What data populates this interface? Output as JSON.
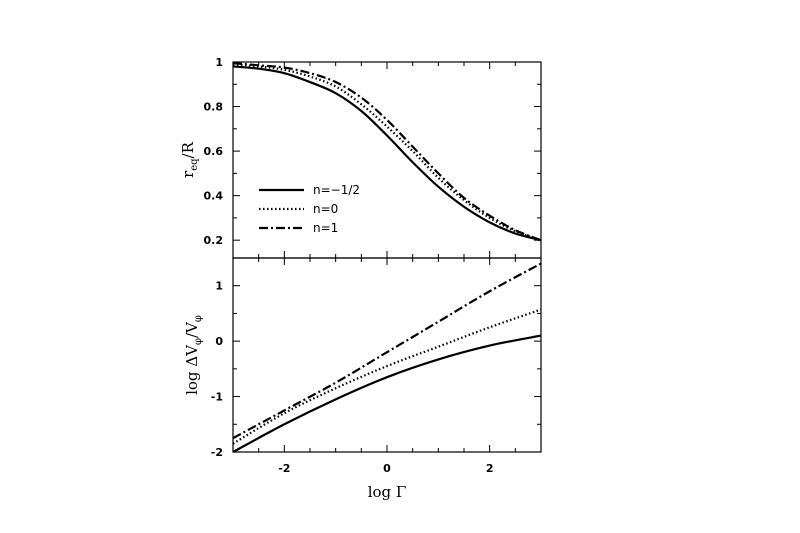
{
  "chart_data": [
    {
      "type": "line",
      "panel": "top",
      "ylabel_main": "r",
      "ylabel_sub": "eq",
      "ylabel_tail": "/R",
      "xlim": [
        -3,
        3
      ],
      "ylim": [
        0.12,
        1.0
      ],
      "yticks": [
        0.2,
        0.4,
        0.6,
        0.8,
        1
      ],
      "ytick_labels": [
        "0.2",
        "0.4",
        "0.6",
        "0.8",
        "1"
      ],
      "legend_placement": "bottom-left",
      "series": [
        {
          "name": "n=−1/2",
          "style": "solid",
          "x": [
            -3,
            -2.5,
            -2,
            -1.5,
            -1,
            -0.5,
            0,
            0.5,
            1,
            1.5,
            2,
            2.5,
            3
          ],
          "y": [
            0.98,
            0.97,
            0.95,
            0.91,
            0.86,
            0.78,
            0.67,
            0.55,
            0.44,
            0.35,
            0.28,
            0.23,
            0.2
          ]
        },
        {
          "name": "n=0",
          "style": "dotted",
          "x": [
            -3,
            -2.5,
            -2,
            -1.5,
            -1,
            -0.5,
            0,
            0.5,
            1,
            1.5,
            2,
            2.5,
            3
          ],
          "y": [
            0.99,
            0.98,
            0.965,
            0.935,
            0.89,
            0.81,
            0.71,
            0.6,
            0.48,
            0.38,
            0.3,
            0.24,
            0.2
          ]
        },
        {
          "name": "n=1",
          "style": "dashdot",
          "x": [
            -3,
            -2.5,
            -2,
            -1.5,
            -1,
            -0.5,
            0,
            0.5,
            1,
            1.5,
            2,
            2.5,
            3
          ],
          "y": [
            0.995,
            0.985,
            0.975,
            0.95,
            0.91,
            0.84,
            0.74,
            0.62,
            0.5,
            0.39,
            0.31,
            0.245,
            0.2
          ]
        }
      ]
    },
    {
      "type": "line",
      "panel": "bottom",
      "ylabel_main": "log ΔV",
      "ylabel_sub": "φ",
      "ylabel_tail": "/V",
      "ylabel_sub2": "φ",
      "xlabel": "log Γ",
      "xlim": [
        -3,
        3
      ],
      "ylim": [
        -2,
        1.5
      ],
      "yticks": [
        -2,
        -1,
        0,
        1
      ],
      "ytick_labels": [
        "-2",
        "-1",
        "0",
        "1"
      ],
      "xticks": [
        -2,
        0,
        2
      ],
      "xtick_labels": [
        "-2",
        "0",
        "2"
      ],
      "series": [
        {
          "name": "n=−1/2",
          "style": "solid",
          "x": [
            -3,
            -2,
            -1,
            0,
            1,
            2,
            3
          ],
          "y": [
            -2.0,
            -1.5,
            -1.05,
            -0.65,
            -0.33,
            -0.08,
            0.1
          ]
        },
        {
          "name": "n=0",
          "style": "dotted",
          "x": [
            -3,
            -2,
            -1,
            0,
            1,
            2,
            3
          ],
          "y": [
            -1.85,
            -1.3,
            -0.85,
            -0.45,
            -0.1,
            0.25,
            0.57
          ]
        },
        {
          "name": "n=1",
          "style": "dashdot",
          "x": [
            -3,
            -2,
            -1,
            0,
            1,
            2,
            3
          ],
          "y": [
            -1.75,
            -1.25,
            -0.75,
            -0.2,
            0.35,
            0.9,
            1.4
          ]
        }
      ]
    }
  ]
}
